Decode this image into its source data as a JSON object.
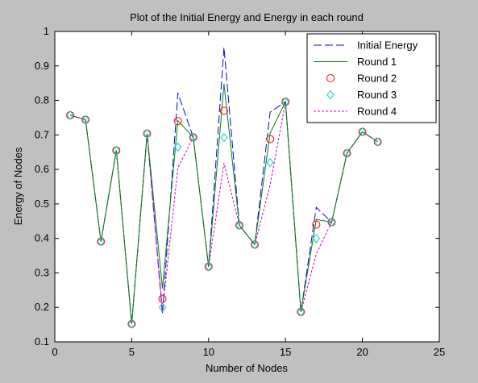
{
  "chart_data": {
    "type": "line",
    "title": "Plot of the Initial Energy and Energy in each round",
    "xlabel": "Number of Nodes",
    "ylabel": "Energy of Nodes",
    "xlim": [
      0,
      25
    ],
    "ylim": [
      0.1,
      1
    ],
    "xticks": [
      0,
      5,
      10,
      15,
      20,
      25
    ],
    "yticks": [
      0.1,
      0.2,
      0.3,
      0.4,
      0.5,
      0.6,
      0.7,
      0.8,
      0.9,
      1
    ],
    "ytick_labels": [
      "0.1",
      "0.2",
      "0.3",
      "0.4",
      "0.5",
      "0.6",
      "0.7",
      "0.8",
      "0.9",
      "1"
    ],
    "grid": false,
    "legend_position": "top-right",
    "x": [
      1,
      2,
      3,
      4,
      5,
      6,
      7,
      8,
      9,
      10,
      11,
      12,
      13,
      14,
      15,
      16,
      17,
      18,
      19,
      20,
      21
    ],
    "series": [
      {
        "name": "Initial Energy",
        "style": "dashed-line",
        "color": "#0000ff",
        "values": [
          0.757,
          0.744,
          0.391,
          0.655,
          0.152,
          0.704,
          0.18,
          0.822,
          0.693,
          0.318,
          0.954,
          0.438,
          0.382,
          0.766,
          0.796,
          0.187,
          0.49,
          0.447,
          0.647,
          0.709,
          0.68
        ]
      },
      {
        "name": "Round 1",
        "style": "solid-line",
        "color": "#008000",
        "values": [
          0.757,
          0.744,
          0.391,
          0.655,
          0.152,
          0.704,
          0.255,
          0.742,
          0.693,
          0.318,
          0.848,
          0.438,
          0.382,
          0.705,
          0.796,
          0.187,
          0.455,
          0.447,
          0.647,
          0.709,
          0.68
        ]
      },
      {
        "name": "Round 2",
        "style": "circle-markers",
        "color": "#ff0000",
        "values": [
          0.757,
          0.744,
          0.391,
          0.655,
          0.152,
          0.704,
          0.225,
          0.74,
          0.693,
          0.318,
          0.77,
          0.438,
          0.382,
          0.688,
          0.796,
          0.187,
          0.44,
          0.447,
          0.647,
          0.709,
          0.68
        ]
      },
      {
        "name": "Round 3",
        "style": "diamond-markers",
        "color": "#00cccc",
        "values": [
          0.757,
          0.744,
          0.391,
          0.655,
          0.152,
          0.704,
          0.2,
          0.665,
          0.693,
          0.318,
          0.692,
          0.438,
          0.382,
          0.62,
          0.796,
          0.187,
          0.4,
          0.447,
          0.647,
          0.709,
          0.68
        ]
      },
      {
        "name": "Round 4",
        "style": "dashed-line",
        "color": "#cc00cc",
        "values": [
          0.757,
          0.744,
          0.391,
          0.655,
          0.152,
          0.704,
          0.19,
          0.605,
          0.693,
          0.318,
          0.618,
          0.438,
          0.382,
          0.555,
          0.796,
          0.187,
          0.355,
          0.447,
          0.647,
          0.709,
          0.68
        ]
      }
    ]
  }
}
